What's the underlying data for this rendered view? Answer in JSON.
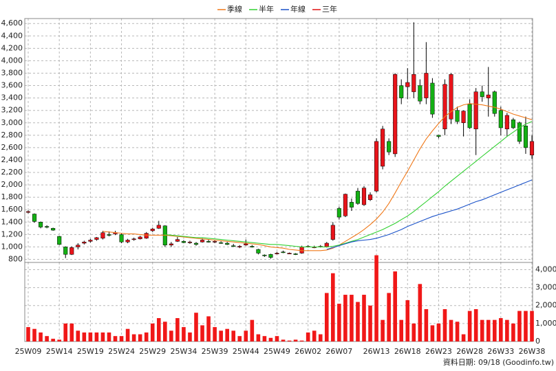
{
  "chart_data": {
    "type": "candlestick",
    "categories": [
      "25W09",
      null,
      null,
      null,
      null,
      "25W14",
      null,
      null,
      null,
      null,
      "25W19",
      null,
      null,
      null,
      null,
      "25W24",
      null,
      null,
      null,
      null,
      "25W29",
      null,
      null,
      null,
      null,
      "25W34",
      null,
      null,
      null,
      null,
      "25W39",
      null,
      null,
      null,
      null,
      "25W44",
      null,
      null,
      null,
      null,
      "25W49",
      null,
      null,
      null,
      null,
      "26W02",
      null,
      null,
      null,
      null,
      "26W07",
      null,
      null,
      null,
      null,
      null,
      "26W13",
      null,
      null,
      null,
      null,
      "26W18",
      null,
      null,
      null,
      null,
      "26W23",
      null,
      null,
      null,
      null,
      "26W28",
      null,
      null,
      null,
      null,
      "26W33",
      null,
      null,
      null,
      null,
      "26W38"
    ],
    "open": [
      1560,
      1530,
      1400,
      1330,
      1300,
      1170,
      1000,
      880,
      1000,
      1060,
      1090,
      1120,
      1140,
      1200,
      1210,
      1200,
      1080,
      1120,
      1130,
      1140,
      1260,
      1300,
      1340,
      1030,
      1090,
      1090,
      1070,
      1060,
      1080,
      1090,
      1080,
      1070,
      1060,
      1020,
      1000,
      1030,
      1010,
      960,
      870,
      880,
      890,
      920,
      900,
      890,
      900,
      1000,
      1000,
      1000,
      1000,
      1120,
      1620,
      1500,
      1720,
      1900,
      1680,
      1760,
      1900,
      2300,
      2700,
      2500,
      3600,
      3580,
      3500,
      3600,
      3400,
      3640,
      2800,
      2900,
      3060,
      3200,
      3000,
      3300,
      2900,
      3500,
      3400,
      3500,
      3200,
      2900,
      3050,
      3000,
      2950,
      2480
    ],
    "high": [
      1590,
      1540,
      1410,
      1350,
      1310,
      1180,
      1010,
      1010,
      1060,
      1100,
      1130,
      1160,
      1260,
      1250,
      1260,
      1220,
      1130,
      1150,
      1180,
      1240,
      1310,
      1420,
      1350,
      1080,
      1160,
      1110,
      1100,
      1080,
      1140,
      1120,
      1110,
      1090,
      1080,
      1050,
      1030,
      1120,
      1030,
      970,
      880,
      890,
      920,
      940,
      910,
      900,
      1020,
      1030,
      1020,
      1030,
      1080,
      1400,
      1650,
      1860,
      1780,
      1950,
      1980,
      1880,
      2750,
      2950,
      2750,
      3800,
      3700,
      3880,
      4620,
      3700,
      4300,
      3720,
      2800,
      3700,
      3800,
      3260,
      3200,
      3380,
      3560,
      3600,
      3900,
      3520,
      3260,
      3160,
      3080,
      3020,
      3100,
      2800
    ],
    "low": [
      1540,
      1390,
      1300,
      1300,
      1260,
      1030,
      820,
      870,
      960,
      1040,
      1070,
      1100,
      1120,
      1170,
      1190,
      1060,
      1060,
      1100,
      1120,
      1130,
      1240,
      1290,
      1000,
      1000,
      1080,
      1060,
      1050,
      1020,
      1070,
      1070,
      1060,
      1050,
      1030,
      1000,
      980,
      1020,
      990,
      880,
      840,
      810,
      880,
      900,
      890,
      870,
      890,
      990,
      980,
      990,
      990,
      1100,
      1440,
      1480,
      1580,
      1680,
      1660,
      1740,
      1880,
      2250,
      2480,
      2450,
      3300,
      3380,
      3400,
      3300,
      3300,
      3080,
      2750,
      2800,
      2980,
      2980,
      2780,
      2900,
      2480,
      3340,
      3100,
      3100,
      2800,
      2780,
      2900,
      2660,
      2500,
      2420
    ],
    "close": [
      1570,
      1410,
      1320,
      1320,
      1270,
      1040,
      880,
      990,
      1030,
      1080,
      1110,
      1150,
      1230,
      1190,
      1230,
      1080,
      1110,
      1130,
      1160,
      1220,
      1290,
      1350,
      1030,
      1050,
      1120,
      1070,
      1080,
      1040,
      1110,
      1080,
      1090,
      1060,
      1040,
      1010,
      1010,
      1050,
      1000,
      900,
      860,
      830,
      900,
      910,
      900,
      880,
      1000,
      1010,
      1000,
      1010,
      1060,
      1350,
      1480,
      1850,
      1640,
      1700,
      1950,
      1840,
      2700,
      2900,
      2530,
      3780,
      3400,
      3650,
      3780,
      3350,
      3800,
      3140,
      2780,
      3620,
      3780,
      3020,
      3190,
      2920,
      3500,
      3420,
      3450,
      3150,
      2920,
      3120,
      2920,
      2700,
      2600,
      2700
    ],
    "up_color": "#e8141b",
    "down_color": "#14b014",
    "ylim": [
      750,
      4680
    ],
    "yticks": [
      800,
      {
        "value": 1000,
        "label": "1,000"
      },
      {
        "value": 1200,
        "label": "1,200"
      },
      {
        "value": 1400,
        "label": "1,400"
      },
      {
        "value": 1600,
        "label": "1,600"
      },
      {
        "value": 1800,
        "label": "1,800"
      },
      {
        "value": 2000,
        "label": "2,000"
      },
      {
        "value": 2200,
        "label": "2,200"
      },
      {
        "value": 2400,
        "label": "2,400"
      },
      {
        "value": 2600,
        "label": "2,600"
      },
      {
        "value": 2800,
        "label": "2,800"
      },
      {
        "value": 3000,
        "label": "3,000"
      },
      {
        "value": 3200,
        "label": "3,200"
      },
      {
        "value": 3400,
        "label": "3,400"
      },
      {
        "value": 3600,
        "label": "3,600"
      },
      {
        "value": 3800,
        "label": "3,800"
      },
      {
        "value": 4000,
        "label": "4,000"
      },
      {
        "value": 4200,
        "label": "4,200"
      },
      {
        "value": 4400,
        "label": "4,400"
      },
      {
        "value": 4600,
        "label": "4,600"
      }
    ],
    "series": [
      {
        "name": "季線",
        "color": "#f07818",
        "values": [
          null,
          null,
          null,
          null,
          null,
          null,
          null,
          null,
          null,
          null,
          null,
          null,
          1250,
          1240,
          1230,
          1220,
          1210,
          1210,
          1200,
          1190,
          1190,
          1190,
          1190,
          1180,
          1170,
          1160,
          1150,
          1140,
          1130,
          1120,
          1110,
          1100,
          1090,
          1080,
          1070,
          1060,
          1050,
          1040,
          1020,
          1000,
          990,
          980,
          960,
          950,
          940,
          940,
          940,
          940,
          950,
          980,
          1030,
          1090,
          1150,
          1210,
          1280,
          1360,
          1450,
          1560,
          1700,
          1870,
          2050,
          2220,
          2400,
          2580,
          2740,
          2870,
          2990,
          3100,
          3180,
          3250,
          3290,
          3310,
          3300,
          3290,
          3270,
          3250,
          3220,
          3180,
          3140,
          3110,
          3080,
          3050
        ]
      },
      {
        "name": "半年",
        "color": "#30d030",
        "values": [
          null,
          null,
          null,
          null,
          null,
          null,
          null,
          null,
          null,
          null,
          null,
          null,
          null,
          null,
          null,
          null,
          null,
          null,
          null,
          null,
          null,
          null,
          1200,
          1190,
          1180,
          1170,
          1160,
          1150,
          1150,
          1140,
          1130,
          1120,
          1110,
          1100,
          1090,
          1080,
          1070,
          1060,
          1050,
          1040,
          1040,
          1030,
          1020,
          1010,
          1000,
          1000,
          1000,
          1000,
          1000,
          1010,
          1030,
          1060,
          1090,
          1120,
          1160,
          1200,
          1240,
          1280,
          1330,
          1380,
          1440,
          1500,
          1570,
          1650,
          1730,
          1810,
          1890,
          1980,
          2060,
          2140,
          2220,
          2300,
          2380,
          2460,
          2540,
          2620,
          2700,
          2780,
          2850,
          2920,
          2980,
          3020
        ]
      },
      {
        "name": "年線",
        "color": "#1850c8",
        "values": [
          null,
          null,
          null,
          null,
          null,
          null,
          null,
          null,
          null,
          null,
          null,
          null,
          null,
          null,
          null,
          null,
          null,
          null,
          null,
          null,
          null,
          null,
          null,
          null,
          null,
          null,
          null,
          null,
          null,
          null,
          null,
          null,
          null,
          null,
          null,
          null,
          null,
          null,
          null,
          null,
          null,
          null,
          null,
          null,
          null,
          null,
          null,
          null,
          960,
          990,
          1020,
          1050,
          1080,
          1100,
          1110,
          1120,
          1140,
          1170,
          1200,
          1240,
          1280,
          1330,
          1370,
          1410,
          1450,
          1490,
          1520,
          1550,
          1580,
          1610,
          1650,
          1690,
          1730,
          1760,
          1800,
          1840,
          1880,
          1920,
          1960,
          2000,
          2040,
          2080
        ]
      },
      {
        "name": "三年",
        "color": "#e01010"
      }
    ],
    "volume": [
      800,
      700,
      500,
      300,
      150,
      100,
      1000,
      1000,
      600,
      500,
      500,
      500,
      500,
      500,
      300,
      300,
      700,
      400,
      400,
      500,
      1000,
      1300,
      1100,
      600,
      1300,
      800,
      500,
      1600,
      900,
      1400,
      800,
      600,
      700,
      600,
      300,
      600,
      1200,
      400,
      300,
      200,
      300,
      100,
      50,
      100,
      50,
      500,
      600,
      400,
      2700,
      3800,
      2100,
      2600,
      2600,
      2200,
      2600,
      2000,
      4800,
      1200,
      2700,
      3900,
      1200,
      2300,
      1000,
      3200,
      1800,
      900,
      1000,
      1800,
      1200,
      1100,
      400,
      1700,
      1800,
      1200,
      1200,
      1200,
      1300,
      1200,
      1000,
      1700,
      1700,
      1700
    ],
    "volume_color": "#f01818",
    "volume_ylim": [
      0,
      4400
    ],
    "volume_yticks": [
      0,
      {
        "value": 1000,
        "label": "1,000"
      },
      {
        "value": 2000,
        "label": "2,000"
      },
      {
        "value": 3000,
        "label": "3,000"
      },
      {
        "value": 4000,
        "label": "4,000"
      }
    ],
    "grid": true,
    "source_note": "資料日期: 09/18 (Goodinfo.tw)"
  }
}
